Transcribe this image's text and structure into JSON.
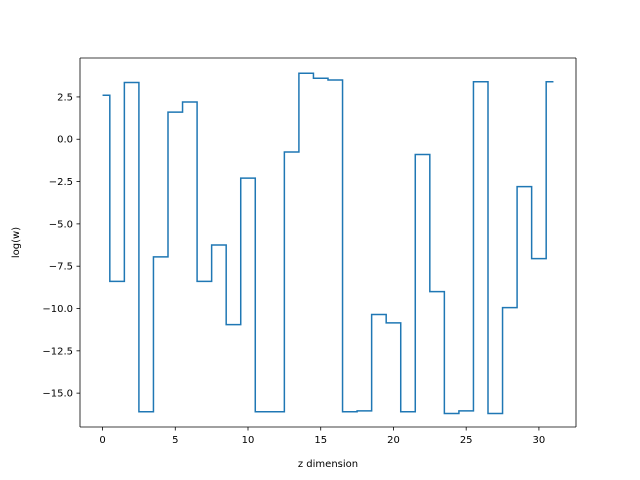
{
  "chart_data": {
    "type": "line",
    "drawstyle": "steps-mid",
    "title": "",
    "xlabel": "z dimension",
    "ylabel": "log(w)",
    "xlim": [
      -1.55,
      32.55
    ],
    "ylim": [
      -17.0,
      4.8
    ],
    "xticks": [
      0,
      5,
      10,
      15,
      20,
      25,
      30
    ],
    "xtick_labels": [
      "0",
      "5",
      "10",
      "15",
      "20",
      "25",
      "30"
    ],
    "yticks": [
      2.5,
      0.0,
      -2.5,
      -5.0,
      -7.5,
      -10.0,
      -12.5,
      -15.0
    ],
    "ytick_labels": [
      "2.5",
      "0.0",
      "−2.5",
      "−5.0",
      "−7.5",
      "−10.0",
      "−12.5",
      "−15.0"
    ],
    "grid": false,
    "color": "#1f77b4",
    "x": [
      0,
      1,
      2,
      3,
      4,
      5,
      6,
      7,
      8,
      9,
      10,
      11,
      12,
      13,
      14,
      15,
      16,
      17,
      18,
      19,
      20,
      21,
      22,
      23,
      24,
      25,
      26,
      27,
      28,
      29,
      30,
      31
    ],
    "y": [
      2.6,
      -8.4,
      3.35,
      -16.1,
      -6.95,
      1.6,
      2.2,
      -8.4,
      -6.25,
      -10.95,
      -2.3,
      -16.1,
      -16.1,
      -0.75,
      3.9,
      3.6,
      3.5,
      -16.1,
      -16.05,
      -10.35,
      -10.85,
      -16.1,
      -0.9,
      -9.0,
      -16.2,
      -16.05,
      3.4,
      -16.2,
      -9.95,
      -2.8,
      -7.05,
      3.4
    ]
  }
}
